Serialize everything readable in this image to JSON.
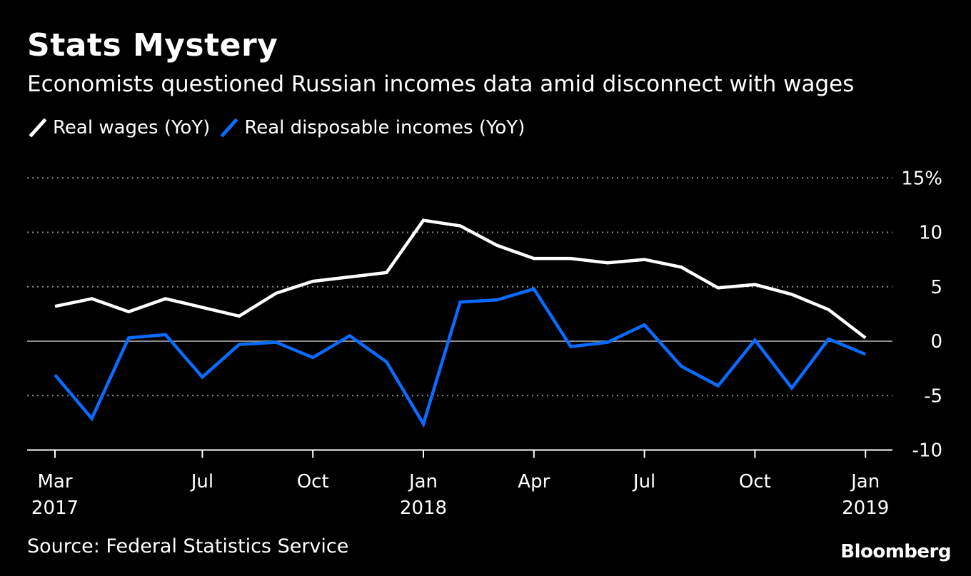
{
  "header": {
    "title": "Stats Mystery",
    "subtitle": "Economists questioned Russian incomes data amid disconnect with wages"
  },
  "footer": {
    "source": "Source: Federal Statistics Service",
    "brand": "Bloomberg"
  },
  "colors": {
    "background": "#000000",
    "wages": "#ffffff",
    "incomes": "#0a6bff",
    "grid": "#8c8c8c"
  },
  "chart_data": {
    "type": "line",
    "title": "Stats Mystery",
    "subtitle": "Economists questioned Russian incomes data amid disconnect with wages",
    "x": [
      "2017-03",
      "2017-04",
      "2017-05",
      "2017-06",
      "2017-07",
      "2017-08",
      "2017-09",
      "2017-10",
      "2017-11",
      "2017-12",
      "2018-01",
      "2018-02",
      "2018-03",
      "2018-04",
      "2018-05",
      "2018-06",
      "2018-07",
      "2018-08",
      "2018-09",
      "2018-10",
      "2018-11",
      "2018-12",
      "2019-01",
      "2019-02"
    ],
    "series": [
      {
        "name": "Real wages (YoY)",
        "color": "#ffffff",
        "values": [
          3.2,
          3.9,
          2.7,
          3.9,
          3.1,
          2.3,
          4.4,
          5.5,
          5.9,
          6.3,
          11.1,
          10.6,
          8.8,
          7.6,
          7.6,
          7.2,
          7.5,
          6.8,
          4.9,
          5.2,
          4.3,
          2.9,
          0.3,
          null
        ]
      },
      {
        "name": "Real disposable incomes (YoY)",
        "color": "#0a6bff",
        "values": [
          -3.1,
          -7.1,
          0.3,
          0.6,
          -3.3,
          -0.3,
          -0.1,
          -1.5,
          0.5,
          -1.9,
          -7.6,
          3.6,
          3.8,
          4.8,
          -0.5,
          -0.1,
          1.5,
          -2.3,
          -4.1,
          0.1,
          -4.3,
          0.2,
          -1.2,
          null
        ]
      }
    ],
    "x_ticks": [
      {
        "x": "2017-03",
        "month": "Mar",
        "year": "2017"
      },
      {
        "x": "2017-07",
        "month": "Jul",
        "year": ""
      },
      {
        "x": "2017-10",
        "month": "Oct",
        "year": ""
      },
      {
        "x": "2018-01",
        "month": "Jan",
        "year": "2018"
      },
      {
        "x": "2018-04",
        "month": "Apr",
        "year": ""
      },
      {
        "x": "2018-07",
        "month": "Jul",
        "year": ""
      },
      {
        "x": "2018-10",
        "month": "Oct",
        "year": ""
      },
      {
        "x": "2019-01",
        "month": "Jan",
        "year": "2019"
      }
    ],
    "y_ticks": [
      15,
      10,
      5,
      0,
      -5,
      -10
    ],
    "y_tick_labels": [
      "15%",
      "10",
      "5",
      "0",
      "-5",
      "-10"
    ],
    "ylim": [
      -10,
      15
    ],
    "xlabel": "",
    "ylabel": "",
    "grid": true,
    "legend_position": "top-left"
  }
}
